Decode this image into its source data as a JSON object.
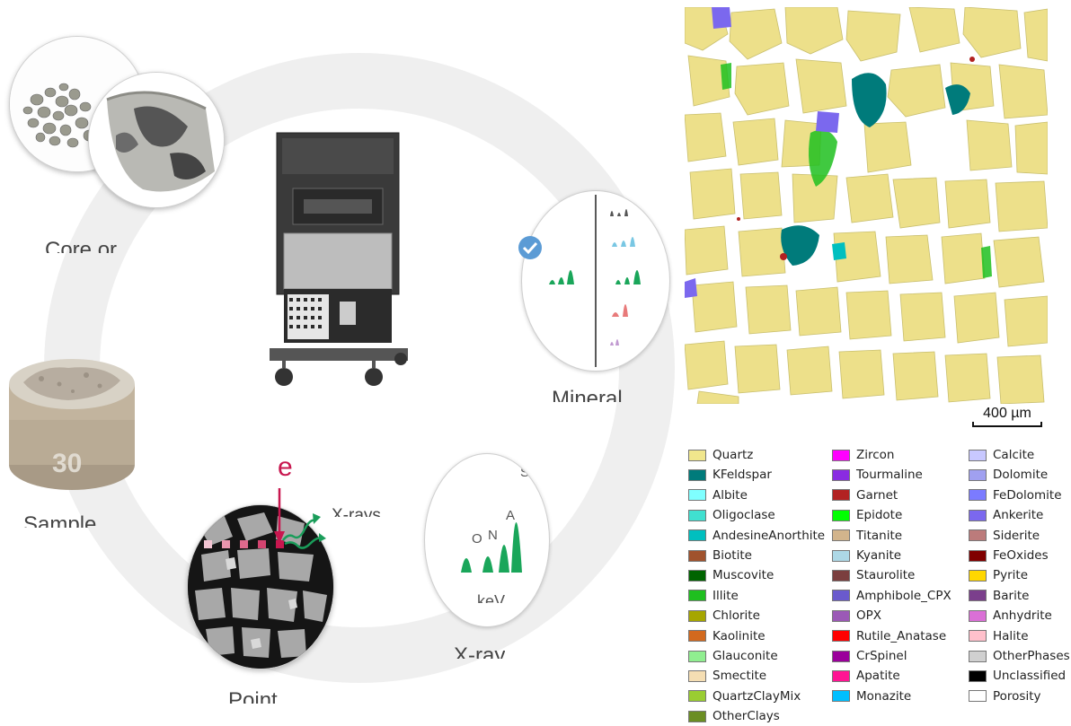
{
  "workflow": {
    "steps": [
      {
        "label": "Core or"
      },
      {
        "label": "Sample"
      },
      {
        "label": "Point"
      },
      {
        "label": "X-ray"
      },
      {
        "label": "Mineral"
      }
    ],
    "sample_mount_number": "30",
    "electron_label": "e",
    "xrays_label": "X-rays",
    "spectrum_axis_label": "keV",
    "spectrum_peaks": [
      "O",
      "N",
      "A",
      "S"
    ]
  },
  "map": {
    "scale_bar_label": "400 µm"
  },
  "legend": {
    "columns": [
      [
        {
          "name": "Quartz",
          "color": "#f0e68c"
        },
        {
          "name": "KFeldspar",
          "color": "#007b7b"
        },
        {
          "name": "Albite",
          "color": "#7fffff"
        },
        {
          "name": "Oligoclase",
          "color": "#40e0d0"
        },
        {
          "name": "AndesineAnorthite",
          "color": "#00bfbf"
        },
        {
          "name": "Biotite",
          "color": "#a0522d"
        },
        {
          "name": "Muscovite",
          "color": "#006400"
        },
        {
          "name": "Illite",
          "color": "#1fbf1f"
        },
        {
          "name": "Chlorite",
          "color": "#a6a600"
        },
        {
          "name": "Kaolinite",
          "color": "#d2691e"
        },
        {
          "name": "Glauconite",
          "color": "#90ee90"
        },
        {
          "name": "Smectite",
          "color": "#f5deb3"
        },
        {
          "name": "QuartzClayMix",
          "color": "#9acd32"
        },
        {
          "name": "OtherClays",
          "color": "#6b8e23"
        }
      ],
      [
        {
          "name": "Zircon",
          "color": "#ff00ff"
        },
        {
          "name": "Tourmaline",
          "color": "#8a2be2"
        },
        {
          "name": "Garnet",
          "color": "#b22222"
        },
        {
          "name": "Epidote",
          "color": "#00ff00"
        },
        {
          "name": "Titanite",
          "color": "#d2b48c"
        },
        {
          "name": "Kyanite",
          "color": "#add8e6"
        },
        {
          "name": "Staurolite",
          "color": "#7b3f3f"
        },
        {
          "name": "Amphibole_CPX",
          "color": "#6a5acd"
        },
        {
          "name": "OPX",
          "color": "#9b59b6"
        },
        {
          "name": "Rutile_Anatase",
          "color": "#ff0000"
        },
        {
          "name": "CrSpinel",
          "color": "#9b009b"
        },
        {
          "name": "Apatite",
          "color": "#ff1493"
        },
        {
          "name": "Monazite",
          "color": "#00bfff"
        }
      ],
      [
        {
          "name": "Calcite",
          "color": "#c8c8ff"
        },
        {
          "name": "Dolomite",
          "color": "#a0a0f0"
        },
        {
          "name": "FeDolomite",
          "color": "#7b7bff"
        },
        {
          "name": "Ankerite",
          "color": "#7b68ee"
        },
        {
          "name": "Siderite",
          "color": "#bc7b7b"
        },
        {
          "name": "FeOxides",
          "color": "#800000"
        },
        {
          "name": "Pyrite",
          "color": "#ffd700"
        },
        {
          "name": "Barite",
          "color": "#7b3f8c"
        },
        {
          "name": "Anhydrite",
          "color": "#da70d6"
        },
        {
          "name": "Halite",
          "color": "#ffc0cb"
        },
        {
          "name": "OtherPhases",
          "color": "#d0d0d0"
        },
        {
          "name": "Unclassified",
          "color": "#000000"
        },
        {
          "name": "Porosity",
          "color": "#ffffff"
        }
      ]
    ]
  }
}
